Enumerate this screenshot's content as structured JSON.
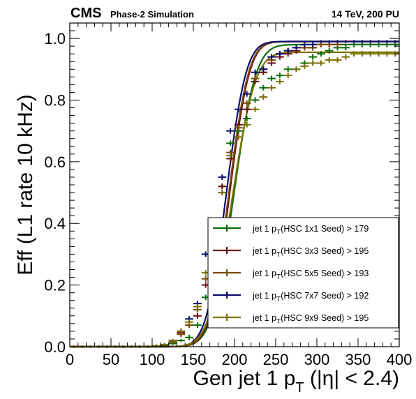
{
  "header": {
    "experiment": "CMS",
    "subtitle": "Phase-2 Simulation",
    "energy": "14 TeV, 200 PU"
  },
  "chart_data": {
    "type": "line",
    "title": "",
    "xlabel_main": "Gen jet 1 p",
    "xlabel_sub": "T",
    "xlabel_tail": " (|η| < 2.4)",
    "ylabel": "Eff (L1 rate 10 kHz)",
    "xlim": [
      0,
      400
    ],
    "ylim": [
      0,
      1.05
    ],
    "xticks": [
      0,
      50,
      100,
      150,
      200,
      250,
      300,
      350,
      400
    ],
    "yticks": [
      0.0,
      0.2,
      0.4,
      0.6,
      0.8,
      1.0
    ],
    "ytick_labels": [
      "0.0",
      "0.2",
      "0.4",
      "0.6",
      "0.8",
      "1.0"
    ],
    "x": [
      5,
      15,
      25,
      35,
      45,
      55,
      65,
      75,
      85,
      95,
      105,
      115,
      125,
      135,
      145,
      155,
      165,
      175,
      185,
      195,
      205,
      215,
      225,
      235,
      245,
      255,
      265,
      275,
      285,
      295,
      305,
      315,
      325,
      335,
      345,
      355,
      365,
      375,
      385,
      395
    ],
    "xerr": 5,
    "legend_position": "right",
    "series": [
      {
        "name": "jet 1 p",
        "sub": "T",
        "rest": "(HSC 1x1 Seed) > 179",
        "color": "#0a6e0a",
        "values": [
          0,
          0,
          0,
          0,
          0,
          0,
          0,
          0,
          0,
          0,
          0.002,
          0.004,
          0.01,
          0.02,
          0.03,
          0.07,
          0.16,
          0.3,
          0.52,
          0.66,
          0.7,
          0.74,
          0.8,
          0.84,
          0.87,
          0.88,
          0.9,
          0.9,
          0.92,
          0.94,
          0.95,
          0.96,
          0.97,
          0.97,
          0.98,
          0.98,
          0.98,
          0.98,
          0.98,
          0.98
        ],
        "fit": {
          "a": 0.98,
          "mu": 199,
          "s": 21
        }
      },
      {
        "name": "jet 1 p",
        "sub": "T",
        "rest": "(HSC 3x3 Seed) > 195",
        "color": "#6e0a0a",
        "values": [
          0,
          0,
          0,
          0,
          0,
          0,
          0,
          0,
          0,
          0,
          0.002,
          0.005,
          0.02,
          0.045,
          0.07,
          0.1,
          0.2,
          0.32,
          0.52,
          0.61,
          0.72,
          0.77,
          0.86,
          0.89,
          0.92,
          0.94,
          0.95,
          0.96,
          0.97,
          0.97,
          0.98,
          0.98,
          0.99,
          0.99,
          0.99,
          0.99,
          0.99,
          0.99,
          0.99,
          0.99
        ],
        "fit": {
          "a": 0.99,
          "mu": 194,
          "s": 19
        }
      },
      {
        "name": "jet 1 p",
        "sub": "T",
        "rest": "(HSC 5x5 Seed) > 193",
        "color": "#7a4a0a",
        "values": [
          0,
          0,
          0,
          0,
          0,
          0,
          0,
          0,
          0,
          0,
          0.002,
          0.005,
          0.015,
          0.04,
          0.07,
          0.12,
          0.22,
          0.33,
          0.5,
          0.63,
          0.71,
          0.79,
          0.87,
          0.9,
          0.93,
          0.95,
          0.96,
          0.97,
          0.97,
          0.97,
          0.98,
          0.98,
          0.98,
          0.99,
          0.99,
          0.99,
          0.99,
          0.99,
          0.99,
          0.99
        ],
        "fit": {
          "a": 0.99,
          "mu": 193,
          "s": 19
        }
      },
      {
        "name": "jet 1 p",
        "sub": "T",
        "rest": "(HSC 7x7 Seed) > 192",
        "color": "#0a0a6e",
        "values": [
          0,
          0,
          0,
          0,
          0,
          0,
          0,
          0,
          0,
          0,
          0.002,
          0.006,
          0.02,
          0.05,
          0.09,
          0.14,
          0.3,
          0.4,
          0.55,
          0.7,
          0.77,
          0.82,
          0.89,
          0.9,
          0.94,
          0.95,
          0.96,
          0.97,
          0.98,
          0.98,
          0.99,
          0.99,
          0.99,
          0.99,
          0.99,
          0.99,
          0.99,
          0.99,
          0.99,
          0.99
        ],
        "fit": {
          "a": 0.99,
          "mu": 190,
          "s": 19
        }
      },
      {
        "name": "jet 1 p",
        "sub": "T",
        "rest": "(HSC 9x9 Seed) > 195",
        "color": "#7a7000",
        "values": [
          0,
          0,
          0,
          0,
          0,
          0,
          0,
          0,
          0,
          0,
          0.003,
          0.007,
          0.02,
          0.05,
          0.08,
          0.13,
          0.24,
          0.29,
          0.5,
          0.62,
          0.68,
          0.72,
          0.77,
          0.81,
          0.84,
          0.86,
          0.88,
          0.9,
          0.91,
          0.92,
          0.92,
          0.93,
          0.93,
          0.94,
          0.95,
          0.95,
          0.95,
          0.95,
          0.95,
          0.95
        ],
        "fit": {
          "a": 0.955,
          "mu": 197,
          "s": 22
        }
      }
    ]
  }
}
